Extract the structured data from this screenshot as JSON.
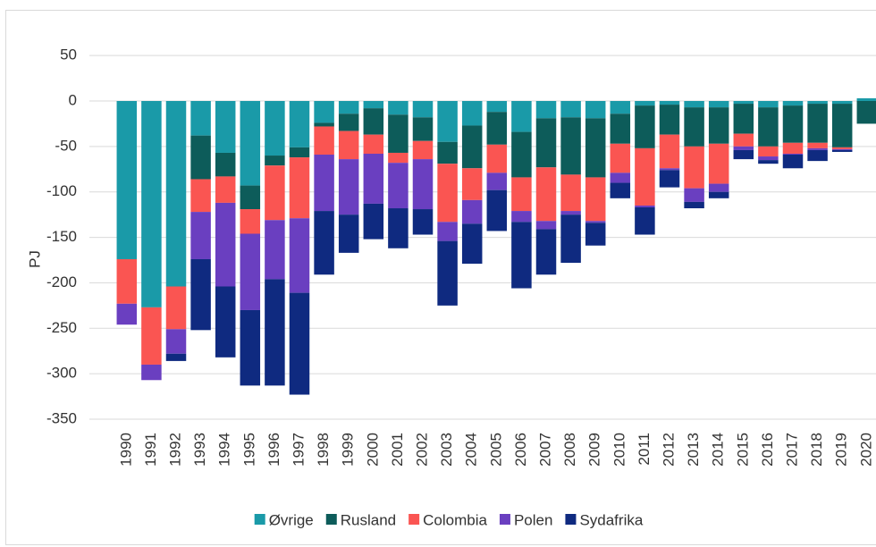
{
  "chart_data": {
    "type": "bar",
    "stacked": true,
    "y_label": "PJ",
    "categories": [
      "1990",
      "1991",
      "1992",
      "1993",
      "1994",
      "1995",
      "1996",
      "1997",
      "1998",
      "1999",
      "2000",
      "2001",
      "2002",
      "2003",
      "2004",
      "2005",
      "2006",
      "2007",
      "2008",
      "2009",
      "2010",
      "2011",
      "2012",
      "2013",
      "2014",
      "2015",
      "2016",
      "2017",
      "2018",
      "2019",
      "2020"
    ],
    "series": [
      {
        "name": "Øvrige",
        "color": "#1a9aa8",
        "values": [
          -174,
          -227,
          -204,
          -38,
          -57,
          -93,
          -60,
          -51,
          -24,
          -14,
          -8,
          -15,
          -18,
          -45,
          -27,
          -12,
          -34,
          -19,
          -18,
          -19,
          -14,
          -5,
          -4,
          -7,
          -7,
          -3,
          -7,
          -5,
          -3,
          -3,
          3
        ]
      },
      {
        "name": "Rusland",
        "color": "#0d5c5a",
        "values": [
          0,
          0,
          0,
          -48,
          -26,
          -26,
          -11,
          -11,
          -4,
          -19,
          -29,
          -42,
          -26,
          -24,
          -47,
          -36,
          -50,
          -54,
          -63,
          -65,
          -33,
          -47,
          -33,
          -43,
          -40,
          -33,
          -43,
          -41,
          -43,
          -48,
          -25
        ]
      },
      {
        "name": "Colombia",
        "color": "#fa5552",
        "values": [
          -49,
          -63,
          -47,
          -36,
          -29,
          -27,
          -60,
          -67,
          -31,
          -31,
          -21,
          -11,
          -20,
          -64,
          -35,
          -31,
          -37,
          -59,
          -40,
          -48,
          -32,
          -63,
          -37,
          -46,
          -44,
          -14,
          -11,
          -12,
          -6,
          -2,
          0
        ]
      },
      {
        "name": "Polen",
        "color": "#6a3fc0",
        "values": [
          -23,
          -17,
          -27,
          -52,
          -92,
          -84,
          -65,
          -82,
          -62,
          -61,
          -55,
          -50,
          -55,
          -21,
          -26,
          -19,
          -12,
          -9,
          -4,
          -2,
          -11,
          -2,
          -2,
          -15,
          -9,
          -4,
          -4,
          -1,
          -2,
          -1,
          0
        ]
      },
      {
        "name": "Sydafrika",
        "color": "#0f2a80",
        "values": [
          0,
          0,
          -8,
          -78,
          -78,
          -83,
          -117,
          -112,
          -70,
          -42,
          -39,
          -44,
          -28,
          -71,
          -44,
          -45,
          -73,
          -50,
          -53,
          -25,
          -17,
          -30,
          -19,
          -7,
          -7,
          -10,
          -4,
          -15,
          -12,
          -2,
          0
        ]
      }
    ],
    "ylim": [
      -350,
      70
    ],
    "yticks": [
      -350,
      -300,
      -250,
      -200,
      -150,
      -100,
      -50,
      0,
      50
    ],
    "grid": true
  }
}
